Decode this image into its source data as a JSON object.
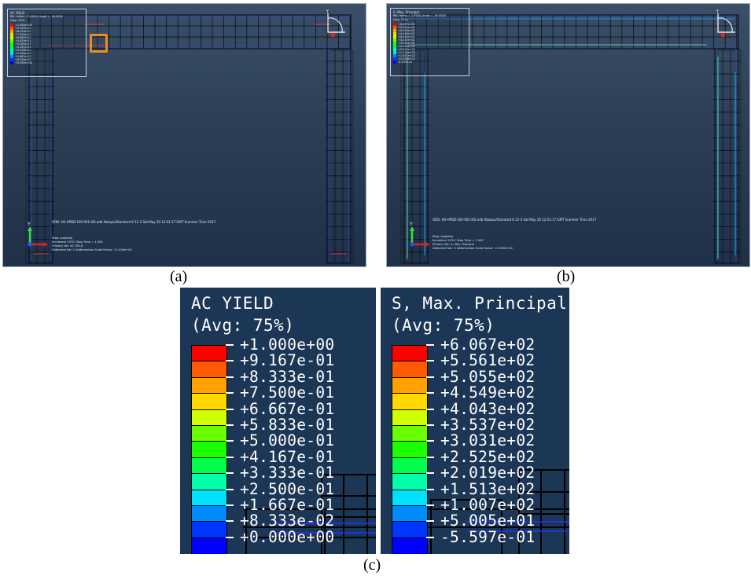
{
  "panels": {
    "a": {
      "caption": "(a)",
      "legend_title": "AC YIELD",
      "legend_subtitle": "Rel. radius = 1.0000, Angle = -90.0000",
      "legend_avg": "(Avg: 75%)",
      "legend_values": [
        "+1.000e+00",
        "+9.167e-01",
        "+8.333e-01",
        "+7.500e-01",
        "+6.667e-01",
        "+5.833e-01",
        "+5.000e-01",
        "+4.167e-01",
        "+3.333e-01",
        "+2.500e-01",
        "+1.667e-01",
        "+8.333e-02",
        "+0.000e+00"
      ],
      "odb_line": "ODB: HS-HPDB-100-001-HD.odb    Abaqus/Standard 6.12-3    Sat May 20 12:51:17 GMT Summer Time 2017",
      "step_line": "Step: loadstep",
      "increment_line": "Increment   1570: Step Time =    1.000",
      "primary_line": "Primary Var: AC YIELD",
      "deformed_line": "Deformed Var: U   Deformation Scale Factor: +1.000e+00"
    },
    "b": {
      "caption": "(b)",
      "legend_title": "S, Max. Principal",
      "legend_subtitle": "Rel. radius = 1.0000, Angle = -90.0000",
      "legend_avg": "(Avg: 75%)",
      "legend_values": [
        "+6.067e+02",
        "+5.561e+02",
        "+5.055e+02",
        "+4.549e+02",
        "+4.043e+02",
        "+3.537e+02",
        "+3.031e+02",
        "+2.525e+02",
        "+2.019e+02",
        "+1.513e+02",
        "+1.007e+02",
        "+5.005e+01",
        "-5.597e-01"
      ],
      "odb_line": "ODB: HS-HPDB-100-001-HD.odb    Abaqus/Standard 6.12-3    Sat May 20 12:51:17 GMT Summer Time 2017",
      "step_line": "Step: loadstep",
      "increment_line": "Increment   1570: Step Time =    1.000",
      "primary_line": "Primary Var: S, Max. Principal",
      "deformed_line": "Deformed Var: U   Deformation Scale Factor: +1.000e+00"
    },
    "c": {
      "caption": "(c)",
      "left": {
        "title": "AC YIELD",
        "avg": "(Avg: 75%)",
        "values": [
          "+1.000e+00",
          "+9.167e-01",
          "+8.333e-01",
          "+7.500e-01",
          "+6.667e-01",
          "+5.833e-01",
          "+5.000e-01",
          "+4.167e-01",
          "+3.333e-01",
          "+2.500e-01",
          "+1.667e-01",
          "+8.333e-02",
          "+0.000e+00"
        ]
      },
      "right": {
        "title": "S, Max. Principal",
        "avg": "(Avg: 75%)",
        "values": [
          "+6.067e+02",
          "+5.561e+02",
          "+5.055e+02",
          "+4.549e+02",
          "+4.043e+02",
          "+3.537e+02",
          "+3.031e+02",
          "+2.525e+02",
          "+2.019e+02",
          "+1.513e+02",
          "+1.007e+02",
          "+5.005e+01",
          "-5.597e-01"
        ]
      }
    }
  },
  "triad_labels": {
    "x": "X",
    "y": "Y",
    "z": "Z"
  },
  "colors": {
    "contour": [
      "#ff0000",
      "#ff5a00",
      "#ffa200",
      "#ffd800",
      "#cfff00",
      "#6aff00",
      "#1cff00",
      "#00ff4a",
      "#00ffa8",
      "#00e1ff",
      "#008cff",
      "#0037ff",
      "#0000ff"
    ],
    "viewport_top": "#3a4f68",
    "viewport_bottom": "#1f3049",
    "highlight": "#f08a1c",
    "mesh": "#0a0f16"
  }
}
